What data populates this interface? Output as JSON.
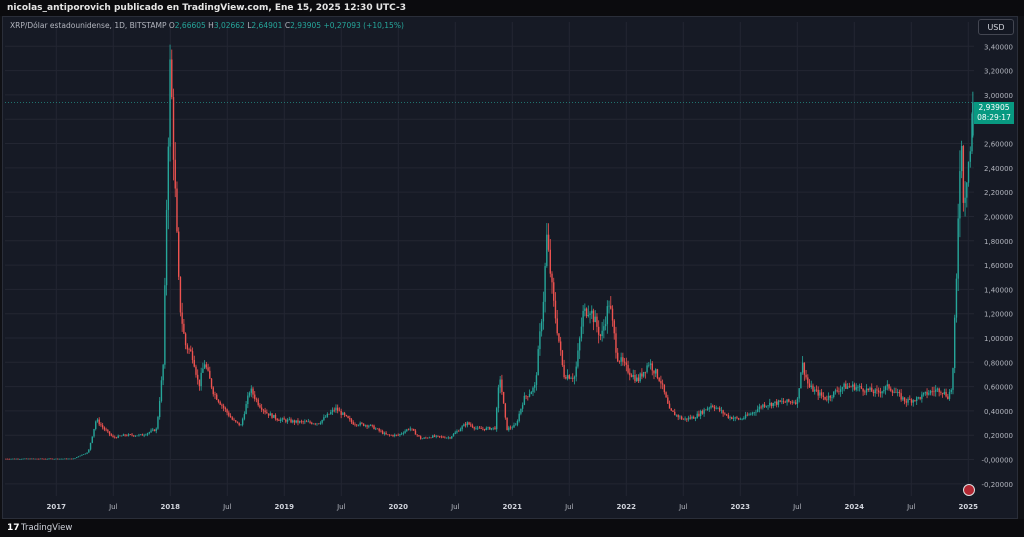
{
  "header": {
    "author": "nicolas_antiporovich publicado en TradingView.com, Ene 15, 2025 12:30 UTC-3"
  },
  "legend": {
    "symbol": "XRP/Dólar estadounidense, 1D, BITSTAMP",
    "o_label": "O",
    "o_value": "2,66605",
    "h_label": "H",
    "h_value": "3,02662",
    "l_label": "L",
    "l_value": "2,64901",
    "c_label": "C",
    "c_value": "2,93905",
    "change": "+0,27093 (+10,15%)"
  },
  "currency_button": "USD",
  "last_price": {
    "price": "2,93905",
    "countdown": "08:29:17"
  },
  "footer": {
    "logo": "17",
    "brand": "TradingView"
  },
  "colors": {
    "up": "#26a69a",
    "down": "#ef5350",
    "grid": "#232632",
    "axis_text": "#b2b5be",
    "price_tag": "#089981",
    "background": "#161a25"
  },
  "chart_data": {
    "type": "candlestick",
    "symbol": "XRP/USD",
    "exchange": "BITSTAMP",
    "interval": "1D",
    "ylim": [
      -0.3,
      3.6
    ],
    "y_ticks": [
      "3,40000",
      "3,20000",
      "3,00000",
      "2,80000",
      "2,60000",
      "2,40000",
      "2,20000",
      "2,00000",
      "1,80000",
      "1,60000",
      "1,40000",
      "1,20000",
      "1,00000",
      "0,80000",
      "0,60000",
      "0,40000",
      "0,20000",
      "-0,00000",
      "-0,20000"
    ],
    "y_tick_values": [
      3.4,
      3.2,
      3.0,
      2.8,
      2.6,
      2.4,
      2.2,
      2.0,
      1.8,
      1.6,
      1.4,
      1.2,
      1.0,
      0.8,
      0.6,
      0.4,
      0.2,
      0.0,
      -0.2
    ],
    "xlim": [
      2016.55,
      2025.05
    ],
    "x_ticks": [
      {
        "label": "2017",
        "t": 2017.0,
        "major": true
      },
      {
        "label": "Jul",
        "t": 2017.5,
        "major": false
      },
      {
        "label": "2018",
        "t": 2018.0,
        "major": true
      },
      {
        "label": "Jul",
        "t": 2018.5,
        "major": false
      },
      {
        "label": "2019",
        "t": 2019.0,
        "major": true
      },
      {
        "label": "Jul",
        "t": 2019.5,
        "major": false
      },
      {
        "label": "2020",
        "t": 2020.0,
        "major": true
      },
      {
        "label": "Jul",
        "t": 2020.5,
        "major": false
      },
      {
        "label": "2021",
        "t": 2021.0,
        "major": true
      },
      {
        "label": "Jul",
        "t": 2021.5,
        "major": false
      },
      {
        "label": "2022",
        "t": 2022.0,
        "major": true
      },
      {
        "label": "Jul",
        "t": 2022.5,
        "major": false
      },
      {
        "label": "2023",
        "t": 2023.0,
        "major": true
      },
      {
        "label": "Jul",
        "t": 2023.5,
        "major": false
      },
      {
        "label": "2024",
        "t": 2024.0,
        "major": true
      },
      {
        "label": "Jul",
        "t": 2024.5,
        "major": false
      },
      {
        "label": "2025",
        "t": 2025.0,
        "major": true
      }
    ],
    "last_close": 2.93905,
    "price_path": [
      [
        2016.55,
        0.006
      ],
      [
        2017.15,
        0.006
      ],
      [
        2017.2,
        0.03
      ],
      [
        2017.28,
        0.06
      ],
      [
        2017.35,
        0.33
      ],
      [
        2017.42,
        0.25
      ],
      [
        2017.5,
        0.18
      ],
      [
        2017.6,
        0.2
      ],
      [
        2017.75,
        0.2
      ],
      [
        2017.88,
        0.25
      ],
      [
        2017.94,
        0.8
      ],
      [
        2017.97,
        2.2
      ],
      [
        2018.0,
        3.3
      ],
      [
        2018.03,
        2.5
      ],
      [
        2018.08,
        1.3
      ],
      [
        2018.13,
        0.95
      ],
      [
        2018.2,
        0.85
      ],
      [
        2018.25,
        0.6
      ],
      [
        2018.3,
        0.8
      ],
      [
        2018.38,
        0.55
      ],
      [
        2018.45,
        0.45
      ],
      [
        2018.55,
        0.32
      ],
      [
        2018.62,
        0.28
      ],
      [
        2018.7,
        0.58
      ],
      [
        2018.78,
        0.45
      ],
      [
        2018.85,
        0.38
      ],
      [
        2018.95,
        0.33
      ],
      [
        2019.1,
        0.31
      ],
      [
        2019.3,
        0.3
      ],
      [
        2019.45,
        0.42
      ],
      [
        2019.6,
        0.3
      ],
      [
        2019.75,
        0.28
      ],
      [
        2019.9,
        0.2
      ],
      [
        2020.0,
        0.2
      ],
      [
        2020.1,
        0.26
      ],
      [
        2020.2,
        0.17
      ],
      [
        2020.3,
        0.19
      ],
      [
        2020.45,
        0.18
      ],
      [
        2020.6,
        0.3
      ],
      [
        2020.7,
        0.25
      ],
      [
        2020.85,
        0.26
      ],
      [
        2020.89,
        0.7
      ],
      [
        2020.95,
        0.25
      ],
      [
        2021.03,
        0.28
      ],
      [
        2021.1,
        0.5
      ],
      [
        2021.2,
        0.6
      ],
      [
        2021.28,
        1.4
      ],
      [
        2021.3,
        1.85
      ],
      [
        2021.36,
        1.3
      ],
      [
        2021.45,
        0.7
      ],
      [
        2021.55,
        0.68
      ],
      [
        2021.62,
        1.2
      ],
      [
        2021.68,
        1.25
      ],
      [
        2021.78,
        1.0
      ],
      [
        2021.85,
        1.3
      ],
      [
        2021.92,
        0.85
      ],
      [
        2022.0,
        0.75
      ],
      [
        2022.1,
        0.65
      ],
      [
        2022.2,
        0.8
      ],
      [
        2022.3,
        0.65
      ],
      [
        2022.38,
        0.4
      ],
      [
        2022.5,
        0.33
      ],
      [
        2022.6,
        0.35
      ],
      [
        2022.75,
        0.45
      ],
      [
        2022.9,
        0.35
      ],
      [
        2023.0,
        0.33
      ],
      [
        2023.1,
        0.38
      ],
      [
        2023.2,
        0.45
      ],
      [
        2023.35,
        0.47
      ],
      [
        2023.5,
        0.48
      ],
      [
        2023.54,
        0.8
      ],
      [
        2023.6,
        0.6
      ],
      [
        2023.75,
        0.5
      ],
      [
        2023.9,
        0.6
      ],
      [
        2024.0,
        0.6
      ],
      [
        2024.2,
        0.55
      ],
      [
        2024.3,
        0.6
      ],
      [
        2024.45,
        0.48
      ],
      [
        2024.55,
        0.5
      ],
      [
        2024.65,
        0.55
      ],
      [
        2024.75,
        0.58
      ],
      [
        2024.82,
        0.52
      ],
      [
        2024.86,
        0.6
      ],
      [
        2024.88,
        1.1
      ],
      [
        2024.9,
        1.55
      ],
      [
        2024.92,
        2.4
      ],
      [
        2024.94,
        2.6
      ],
      [
        2024.96,
        2.1
      ],
      [
        2024.98,
        2.3
      ],
      [
        2025.0,
        2.45
      ],
      [
        2025.02,
        2.55
      ],
      [
        2025.04,
        2.94
      ]
    ]
  }
}
